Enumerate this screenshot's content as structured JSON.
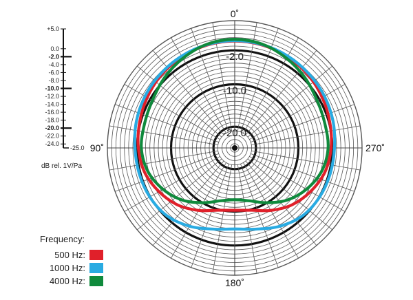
{
  "chart_data": {
    "type": "polar",
    "angle_labels": [
      {
        "angle": 0,
        "text": "0˚"
      },
      {
        "angle": 90,
        "text": "90˚"
      },
      {
        "angle": 180,
        "text": "180˚"
      },
      {
        "angle": 270,
        "text": "270˚"
      }
    ],
    "radial_range": [
      -25,
      5
    ],
    "ring_labels": [
      {
        "value": -2,
        "text": "-2.0"
      },
      {
        "value": -10,
        "text": "-10.0"
      },
      {
        "value": -20,
        "text": "-20.0"
      }
    ],
    "scale_ticks": [
      {
        "value": 5,
        "text": "+5.0",
        "bold": false
      },
      {
        "value": 0,
        "text": "0.0",
        "bold": false
      },
      {
        "value": -2,
        "text": "-2.0",
        "bold": true
      },
      {
        "value": -4,
        "text": "-4.0",
        "bold": false
      },
      {
        "value": -6,
        "text": "-6.0",
        "bold": false
      },
      {
        "value": -8,
        "text": "-8.0",
        "bold": false
      },
      {
        "value": -10,
        "text": "-10.0",
        "bold": true
      },
      {
        "value": -12,
        "text": "-12.0",
        "bold": false
      },
      {
        "value": -14,
        "text": "-14.0",
        "bold": false
      },
      {
        "value": -16,
        "text": "-16.0",
        "bold": false
      },
      {
        "value": -18,
        "text": "-18.0",
        "bold": false
      },
      {
        "value": -20,
        "text": "-20.0",
        "bold": true
      },
      {
        "value": -22,
        "text": "-22.0",
        "bold": false
      },
      {
        "value": -24,
        "text": "-24.0",
        "bold": false
      },
      {
        "value": -25,
        "text": "-25.0",
        "bold": false
      }
    ],
    "unit_label": "dB rel. 1V/Pa",
    "legend_title": "Frequency:",
    "series": [
      {
        "name": "500 Hz:",
        "color": "#e0202a",
        "points": [
          [
            0,
            0.2
          ],
          [
            15,
            0.1
          ],
          [
            30,
            -0.2
          ],
          [
            45,
            -0.6
          ],
          [
            60,
            -1.2
          ],
          [
            75,
            -1.8
          ],
          [
            90,
            -2.3
          ],
          [
            105,
            -3.0
          ],
          [
            120,
            -4.4
          ],
          [
            135,
            -6.0
          ],
          [
            150,
            -8.0
          ],
          [
            165,
            -9.8
          ],
          [
            180,
            -10.3
          ],
          [
            195,
            -9.8
          ],
          [
            210,
            -8.0
          ],
          [
            225,
            -6.0
          ],
          [
            240,
            -4.4
          ],
          [
            255,
            -3.0
          ],
          [
            270,
            -2.3
          ],
          [
            285,
            -1.8
          ],
          [
            300,
            -1.2
          ],
          [
            315,
            -0.6
          ],
          [
            330,
            -0.2
          ],
          [
            345,
            0.1
          ]
        ]
      },
      {
        "name": "1000 Hz:",
        "color": "#29abe2",
        "points": [
          [
            0,
            0.3
          ],
          [
            15,
            0.2
          ],
          [
            30,
            0.0
          ],
          [
            45,
            -0.3
          ],
          [
            60,
            -0.6
          ],
          [
            75,
            -1.0
          ],
          [
            90,
            -1.5
          ],
          [
            105,
            -1.7
          ],
          [
            120,
            -1.9
          ],
          [
            135,
            -2.4
          ],
          [
            150,
            -3.7
          ],
          [
            165,
            -5.2
          ],
          [
            180,
            -5.9
          ],
          [
            195,
            -5.2
          ],
          [
            210,
            -3.7
          ],
          [
            225,
            -2.4
          ],
          [
            240,
            -1.9
          ],
          [
            255,
            -1.7
          ],
          [
            270,
            -1.5
          ],
          [
            285,
            -1.0
          ],
          [
            300,
            -0.6
          ],
          [
            315,
            -0.3
          ],
          [
            330,
            0.0
          ],
          [
            345,
            0.2
          ]
        ]
      },
      {
        "name": "4000 Hz:",
        "color": "#0f8a3c",
        "points": [
          [
            0,
            0.6
          ],
          [
            15,
            0.3
          ],
          [
            30,
            -0.6
          ],
          [
            45,
            -1.6
          ],
          [
            60,
            -2.6
          ],
          [
            75,
            -3.0
          ],
          [
            90,
            -3.0
          ],
          [
            105,
            -3.8
          ],
          [
            120,
            -5.5
          ],
          [
            135,
            -7.6
          ],
          [
            150,
            -10.1
          ],
          [
            165,
            -12.1
          ],
          [
            180,
            -12.8
          ],
          [
            195,
            -12.1
          ],
          [
            210,
            -10.1
          ],
          [
            225,
            -7.6
          ],
          [
            240,
            -5.5
          ],
          [
            255,
            -3.8
          ],
          [
            270,
            -3.0
          ],
          [
            285,
            -3.0
          ],
          [
            300,
            -2.6
          ],
          [
            315,
            -1.6
          ],
          [
            330,
            -0.6
          ],
          [
            345,
            0.3
          ]
        ]
      }
    ]
  }
}
